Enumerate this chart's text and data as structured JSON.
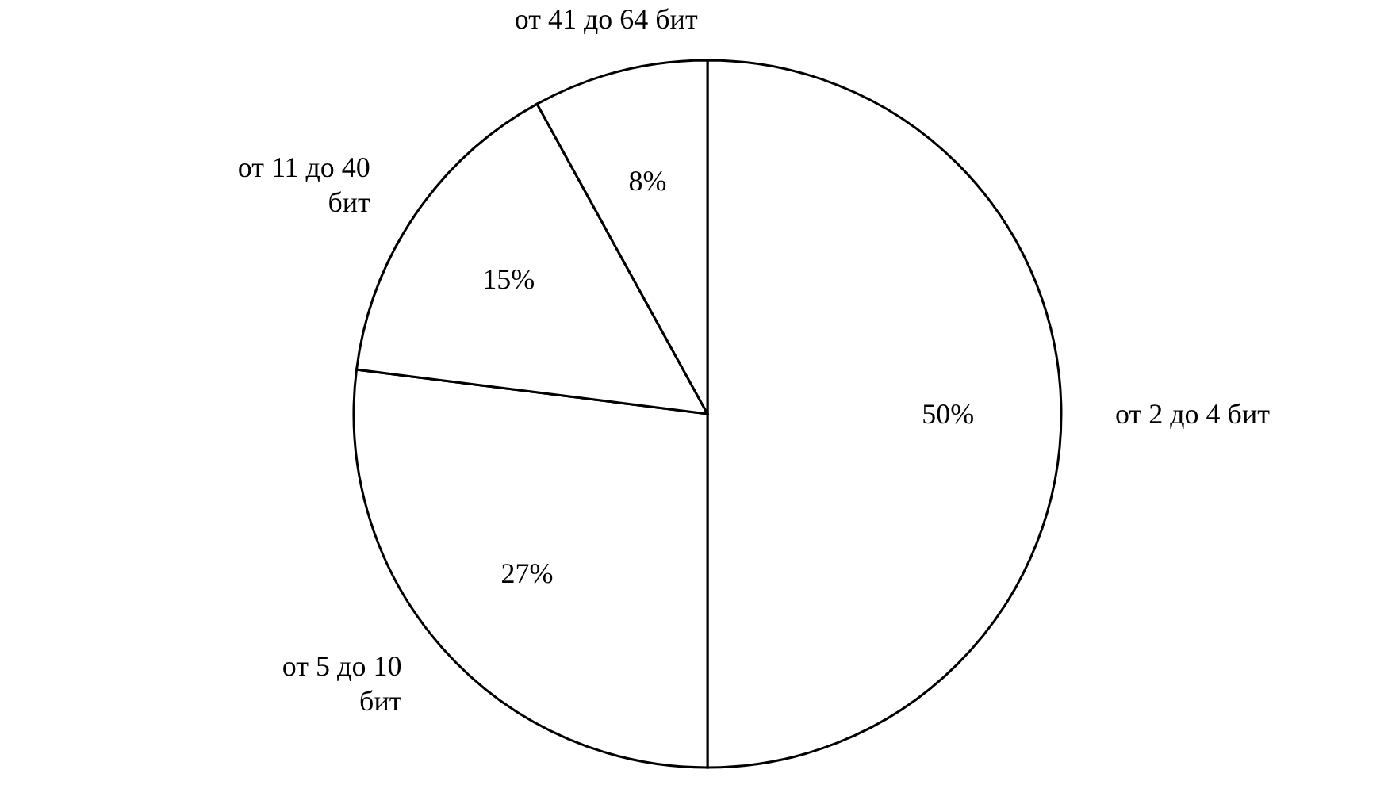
{
  "chart_data": {
    "type": "pie",
    "categories": [
      "от 2 до 4 бит",
      "от 5 до 10 бит",
      "от 11 до 40 бит",
      "от 41 до 64 бит"
    ],
    "values": [
      50,
      27,
      15,
      8
    ],
    "value_labels": [
      "50%",
      "27%",
      "15%",
      "8%"
    ],
    "colors": [
      "#ffffff",
      "#ffffff",
      "#ffffff",
      "#ffffff"
    ]
  }
}
